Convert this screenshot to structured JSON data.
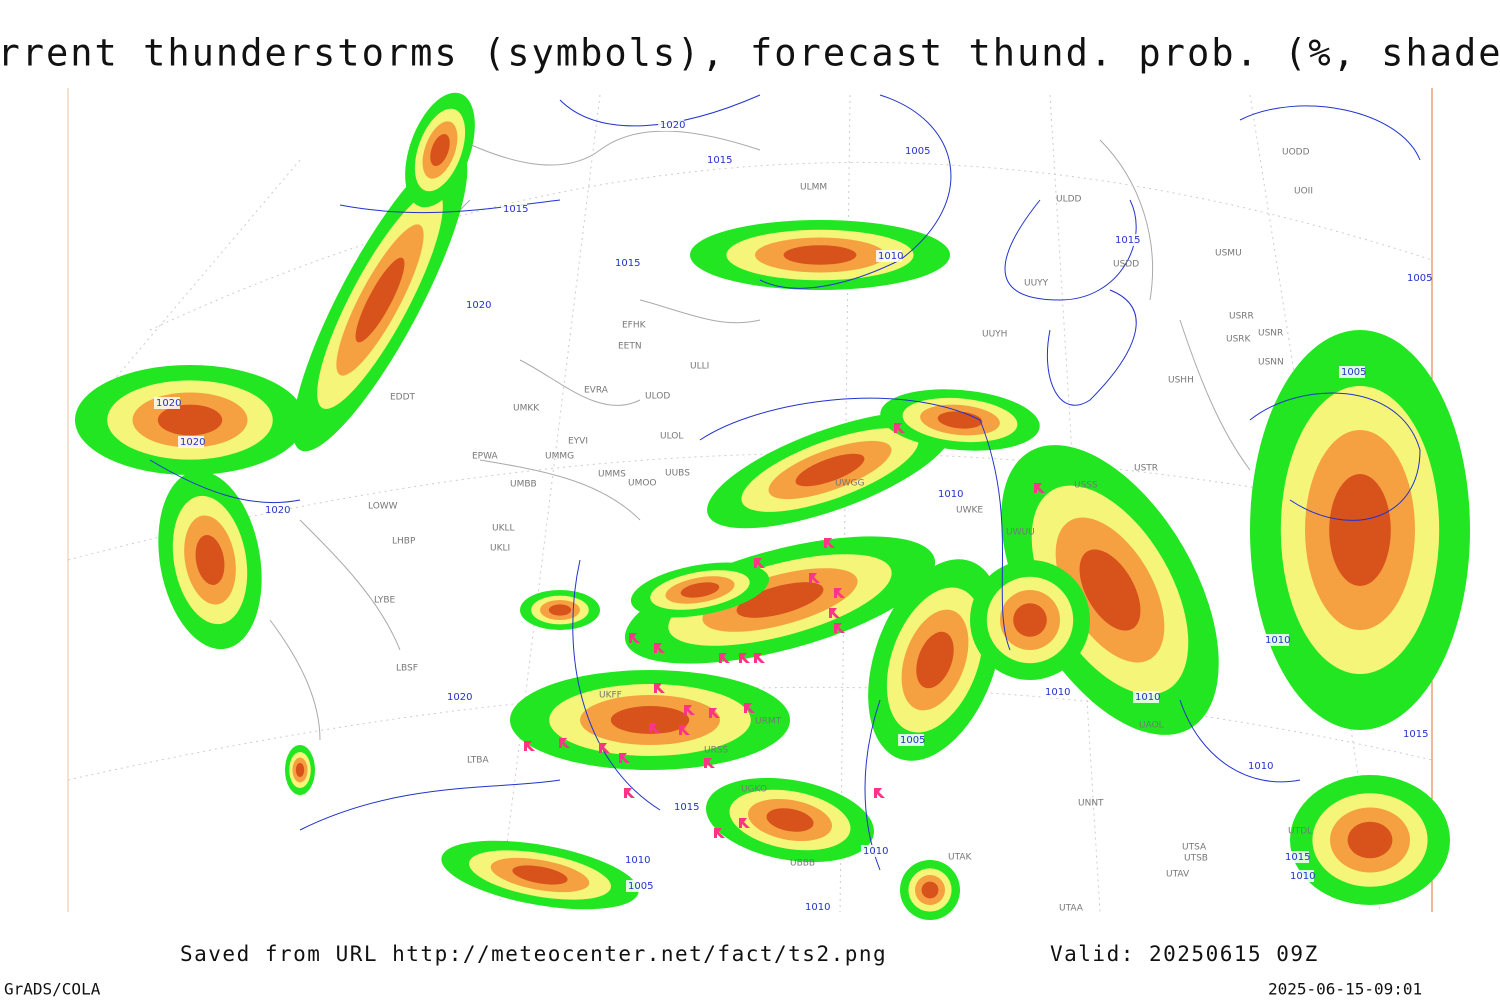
{
  "header": {
    "title": "Current thunderstorms (symbols), forecast thund. prob. (%, shaded)"
  },
  "map": {
    "stations": [
      "EFHK",
      "EETN",
      "EVRA",
      "ULLI",
      "ULOD",
      "ULOL",
      "UMKK",
      "EYVI",
      "UMMG",
      "EPWA",
      "UMBB",
      "UMMS",
      "UMOO",
      "UUBS",
      "EDDT",
      "LOWW",
      "LHBP",
      "UKLL",
      "UKLI",
      "LYBE",
      "LBSF",
      "LTBA",
      "UKFF",
      "URMT",
      "URSS",
      "UGKO",
      "UBBB",
      "UTAK",
      "UTAA",
      "UTSA",
      "UTSB",
      "UTAV",
      "UTDL",
      "UAOL",
      "UNNT",
      "UUYY",
      "UUYH",
      "USSS",
      "USTR",
      "UWKE",
      "UWUU",
      "UWGG",
      "USRR",
      "USRK",
      "USNR",
      "USNN",
      "USHH",
      "USMU",
      "USDD",
      "ULDD",
      "UODD",
      "UOII",
      "ULMM"
    ],
    "isobar_labels": [
      "1020",
      "1015",
      "1005",
      "1015",
      "1010",
      "1015",
      "1020",
      "1015",
      "1020",
      "1020",
      "1020",
      "1005",
      "1010",
      "1010",
      "1010",
      "1010",
      "1005",
      "1015",
      "1015",
      "1010",
      "1005",
      "1010",
      "1010",
      "1010",
      "1015",
      "1010",
      "1020",
      "1005"
    ]
  },
  "footer": {
    "source": "Saved from URL http://meteocenter.net/fact/ts2.png",
    "valid": "Valid: 20250615 09Z",
    "credit": "GrADS/COLA",
    "timestamp": "2025-06-15-09:01"
  }
}
